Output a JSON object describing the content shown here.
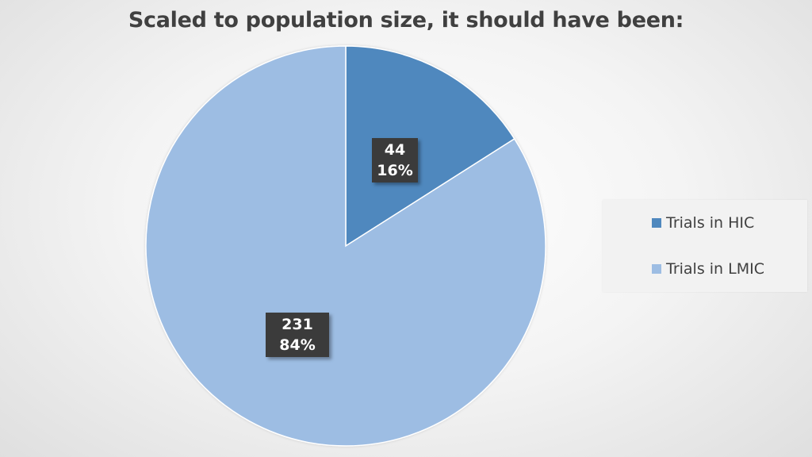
{
  "chart_data": {
    "type": "pie",
    "title": "Scaled to population size, it should have been:",
    "categories": [
      "Trials in HIC",
      "Trials in LMIC"
    ],
    "values": [
      44,
      231
    ],
    "percent_labels": [
      "16%",
      "84%"
    ],
    "value_labels": [
      "44",
      "231"
    ],
    "colors": [
      "#4f88be",
      "#9dbde3"
    ],
    "legend_position": "right",
    "start_angle_deg": 0,
    "direction": "clockwise"
  }
}
